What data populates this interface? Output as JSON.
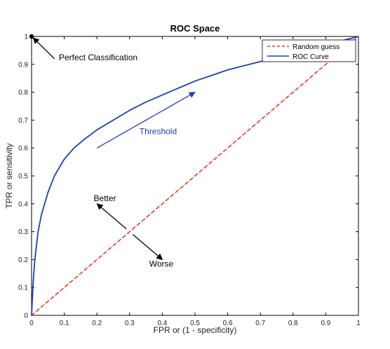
{
  "chart_data": {
    "type": "line",
    "title": "ROC Space",
    "xlabel": "FPR or (1 - specificity)",
    "ylabel": "TPR or sensitivity",
    "xlim": [
      0,
      1
    ],
    "ylim": [
      0,
      1
    ],
    "grid": false,
    "legend_position": "top-right",
    "x_ticks": [
      0,
      0.1,
      0.2,
      0.3,
      0.4,
      0.5,
      0.6,
      0.7,
      0.8,
      0.9,
      1
    ],
    "x_tick_labels": [
      "0",
      "0.1",
      "0.2",
      "0.3",
      "0.4",
      "0.5",
      "0.6",
      "0.7",
      "0.8",
      "0.9",
      "1"
    ],
    "y_ticks": [
      0,
      0.1,
      0.2,
      0.3,
      0.4,
      0.5,
      0.6,
      0.7,
      0.8,
      0.9,
      1
    ],
    "y_tick_labels": [
      "0",
      "0.1",
      "0.2",
      "0.3",
      "0.4",
      "0.5",
      "0.6",
      "0.7",
      "0.8",
      "0.9",
      "1"
    ],
    "series": [
      {
        "name": "Random guess",
        "color": "#e8392a",
        "style": "dashed",
        "x": [
          0,
          1
        ],
        "y": [
          0,
          1
        ]
      },
      {
        "name": "ROC Curve",
        "color": "#1f3fb5",
        "style": "solid",
        "x": [
          0,
          0.005,
          0.01,
          0.02,
          0.03,
          0.05,
          0.07,
          0.1,
          0.13,
          0.16,
          0.2,
          0.25,
          0.3,
          0.35,
          0.4,
          0.45,
          0.5,
          0.55,
          0.6,
          0.65,
          0.7,
          0.75,
          0.8,
          0.85,
          0.9,
          0.95,
          1
        ],
        "y": [
          0,
          0.12,
          0.2,
          0.3,
          0.36,
          0.44,
          0.5,
          0.56,
          0.6,
          0.63,
          0.665,
          0.7,
          0.735,
          0.765,
          0.79,
          0.815,
          0.84,
          0.86,
          0.88,
          0.895,
          0.91,
          0.925,
          0.94,
          0.955,
          0.97,
          0.985,
          1
        ]
      }
    ],
    "points": [
      {
        "name": "perfect-classification",
        "x": 0,
        "y": 1,
        "color": "#000000"
      }
    ],
    "annotations": {
      "perfect": {
        "text": "Perfect Classification",
        "arrow_from": [
          0.07,
          0.92
        ],
        "arrow_to": [
          0.005,
          0.995
        ]
      },
      "threshold": {
        "text": "Threshold",
        "color": "#1f3fb5",
        "arrow_from": [
          0.2,
          0.6
        ],
        "arrow_to": [
          0.5,
          0.8
        ],
        "text_at": [
          0.33,
          0.65
        ]
      },
      "better": {
        "text": "Better",
        "arrow_from": [
          0.29,
          0.31
        ],
        "arrow_to": [
          0.2,
          0.4
        ],
        "text_at": [
          0.19,
          0.41
        ]
      },
      "worse": {
        "text": "Worse",
        "arrow_from": [
          0.31,
          0.29
        ],
        "arrow_to": [
          0.4,
          0.2
        ],
        "text_at": [
          0.36,
          0.175
        ]
      }
    }
  }
}
